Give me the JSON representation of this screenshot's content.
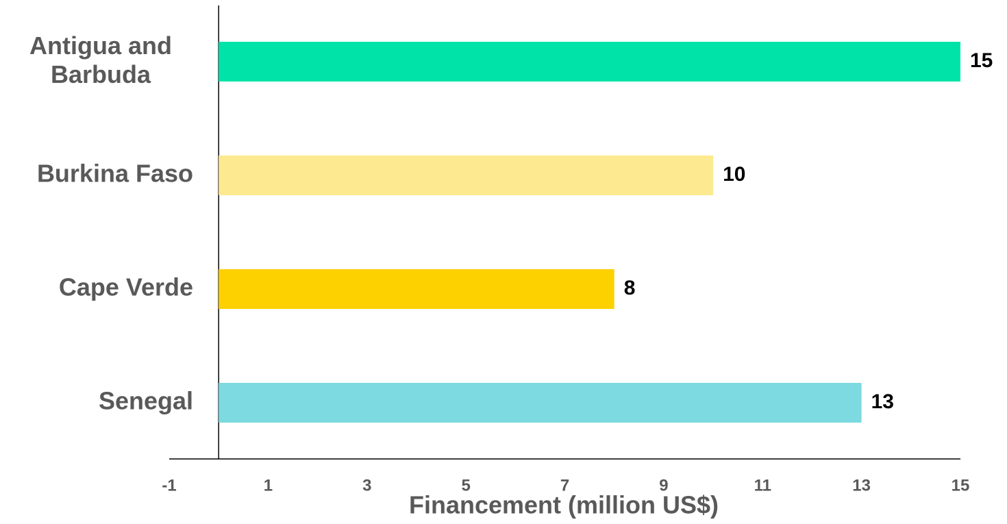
{
  "chart_data": {
    "type": "hbar",
    "categories": [
      "Antigua and Barbuda",
      "Burkina Faso",
      "Cape Verde",
      "Senegal"
    ],
    "values": [
      15,
      10,
      8,
      13
    ],
    "colors": [
      "#00e3a8",
      "#fde98f",
      "#fdd000",
      "#7cdae0"
    ],
    "xlabel": "Financement (million US$)",
    "xlim": [
      -1,
      15
    ],
    "xticks": [
      -1,
      1,
      3,
      5,
      7,
      9,
      11,
      13,
      15
    ]
  }
}
